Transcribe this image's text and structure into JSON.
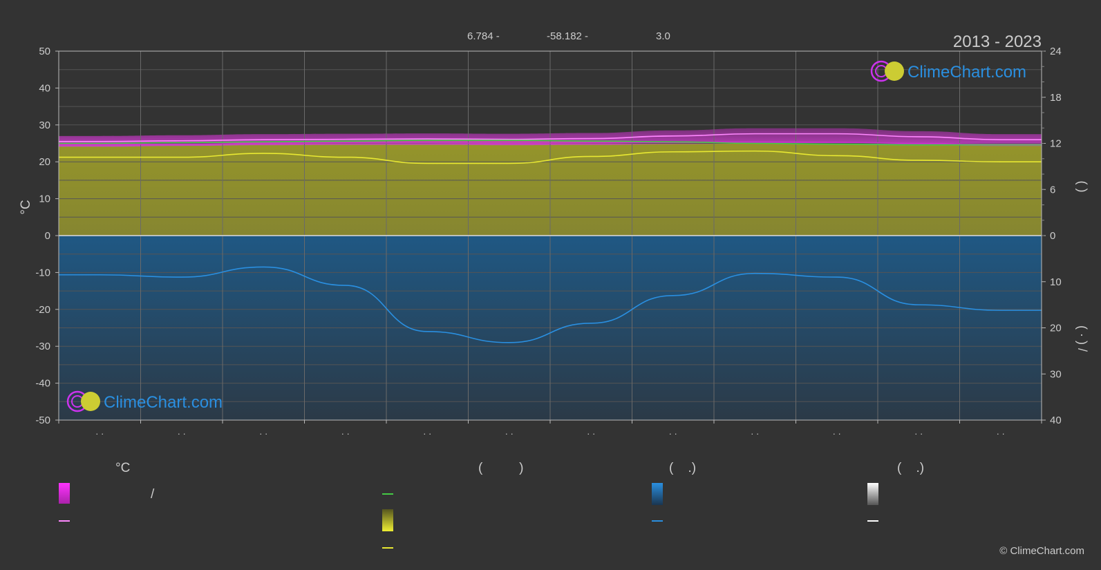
{
  "header": {
    "period": "2013 - 2023",
    "coordinates": [
      "6.784 -",
      "-58.182 -",
      "3.0"
    ]
  },
  "brand": {
    "name": "ClimeChart.com",
    "copyright": "© ClimeChart.com",
    "colors": {
      "ring": "#cc33ee",
      "sun": "#cccc33",
      "text": "#2a8fe0"
    }
  },
  "legend": {
    "temperature_header": "°C",
    "sunshine_header": "(          )",
    "rain_header": "(    .)",
    "snow_header": "(    .)",
    "slash": "/"
  },
  "chart_data": {
    "type": "area",
    "title": "",
    "x": [
      "· ·",
      "· ·",
      "· ·",
      "· ·",
      "· ·",
      "· ·",
      "· ·",
      "· ·",
      "· ·",
      "· ·",
      "· ·",
      "· ·"
    ],
    "y_left": {
      "label": "°C",
      "range": [
        -50,
        50
      ],
      "ticks": [
        50,
        40,
        30,
        20,
        10,
        0,
        -10,
        -20,
        -30,
        -40,
        -50
      ]
    },
    "y_right_top": {
      "range": [
        0,
        24
      ],
      "ticks": [
        24,
        18,
        12,
        6,
        0
      ],
      "label": "(        )"
    },
    "y_right_bottom": {
      "range": [
        0,
        40
      ],
      "ticks": [
        0,
        10,
        20,
        30,
        40
      ],
      "label": "(  ·   )  /"
    },
    "grid": true,
    "series": [
      {
        "key": "temp_max_avg",
        "color": "#ff88ff",
        "values": [
          25.5,
          25.7,
          26.0,
          26.1,
          26.2,
          26.1,
          26.3,
          27.0,
          27.6,
          27.6,
          26.8,
          26.0
        ]
      },
      {
        "key": "temp_min_avg",
        "color": "#cc33cc",
        "values": [
          24.6,
          24.8,
          25.0,
          25.1,
          25.1,
          25.0,
          25.1,
          25.3,
          25.4,
          25.3,
          25.0,
          24.8
        ]
      },
      {
        "key": "daylight_hours",
        "color": "#44cc44",
        "values": [
          12.0,
          12.1,
          12.2,
          12.3,
          12.4,
          12.4,
          12.3,
          12.2,
          12.0,
          11.9,
          11.8,
          11.8
        ]
      },
      {
        "key": "sunshine_hours",
        "color": "#e8e832",
        "values": [
          10.2,
          10.2,
          10.7,
          10.2,
          9.4,
          9.4,
          10.3,
          10.9,
          11.0,
          10.4,
          9.8,
          9.6
        ]
      },
      {
        "key": "precipitation_mm",
        "color": "#2a8fe0",
        "values": [
          8.5,
          9.0,
          6.8,
          10.8,
          20.8,
          23.2,
          19.0,
          13.0,
          8.2,
          9.0,
          15.0,
          16.2
        ]
      }
    ]
  }
}
